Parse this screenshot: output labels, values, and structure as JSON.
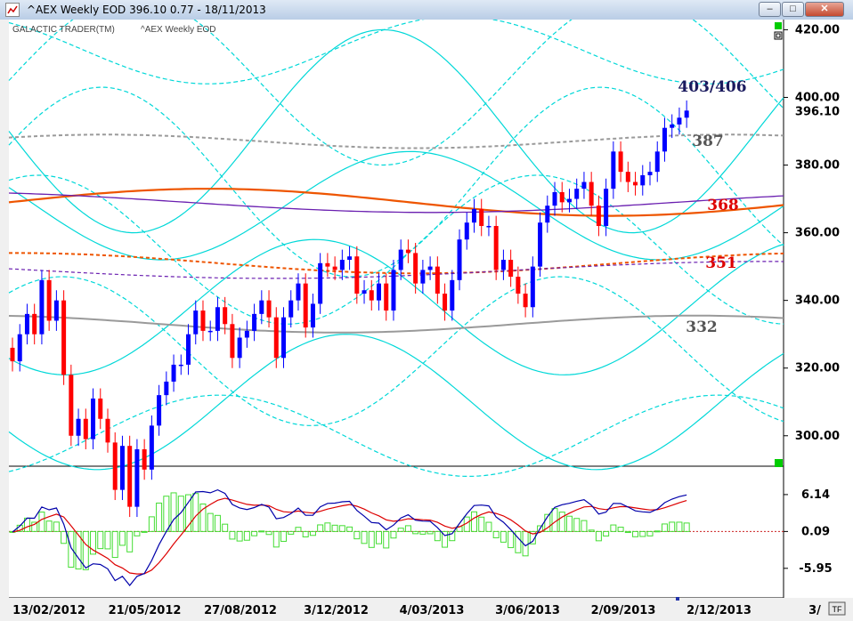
{
  "window": {
    "title": "^AEX Weekly EOD  396.10   0.77 - 18/11/2013",
    "minimize_glyph": "–",
    "maximize_glyph": "□",
    "close_glyph": "✕"
  },
  "chart_header": {
    "brand": "GALACTIC TRADER(TM)",
    "instrument": "^AEX Weekly EOD"
  },
  "corner_badge": "TF",
  "colors": {
    "up_candle": "#0000ff",
    "down_candle": "#ff0000",
    "wave": "#00d8d8",
    "orange": "#ee5500",
    "purple": "#6a1fb0",
    "gray": "#9a9a9a",
    "histogram": "#44dd33",
    "macd": "#0000aa",
    "signal": "#dd0000",
    "last_price_box": "#000000"
  },
  "chart_data": [
    {
      "type": "candlestick",
      "ylim": [
        291,
        423
      ],
      "yticks": [
        "420.00",
        "400.00",
        "380.00",
        "360.00",
        "340.00",
        "320.00",
        "300.00"
      ],
      "last_price_label": "396.10",
      "xticks": [
        "13/02/2012",
        "21/05/2012",
        "27/08/2012",
        "3/12/2012",
        "4/03/2013",
        "3/06/2013",
        "2/09/2013",
        "2/12/2013",
        "3/"
      ],
      "annotations": [
        {
          "text": "403/406",
          "value": 403,
          "color": "#1a1a5e"
        },
        {
          "text": "387",
          "value": 387,
          "color": "#555555"
        },
        {
          "text": "368",
          "value": 368,
          "color": "#dd0000"
        },
        {
          "text": "351",
          "value": 351,
          "color": "#dd0000"
        },
        {
          "text": "332",
          "value": 332,
          "color": "#555555"
        }
      ],
      "closes": [
        322,
        330,
        336,
        330,
        346,
        334,
        340,
        318,
        300,
        305,
        299,
        311,
        305,
        298,
        284,
        297,
        279,
        296,
        290,
        303,
        312,
        316,
        321,
        321,
        330,
        337,
        331,
        331,
        338,
        333,
        323,
        329,
        331,
        336,
        340,
        335,
        323,
        335,
        340,
        345,
        332,
        339,
        351,
        350,
        349,
        352,
        353,
        342,
        343,
        340,
        345,
        337,
        349,
        355,
        354,
        345,
        349,
        350,
        342,
        337,
        346,
        358,
        363,
        367,
        362,
        362,
        349,
        352,
        347,
        342,
        338,
        350,
        363,
        368,
        372,
        369,
        370,
        373,
        375,
        368,
        362,
        373,
        384,
        378,
        375,
        374,
        377,
        378,
        384,
        391,
        392,
        394,
        396.1
      ]
    },
    {
      "type": "macd",
      "ylim": [
        -10.5,
        10.5
      ],
      "yticks": [
        "6.14",
        "0.09",
        "-5.95"
      ]
    }
  ]
}
